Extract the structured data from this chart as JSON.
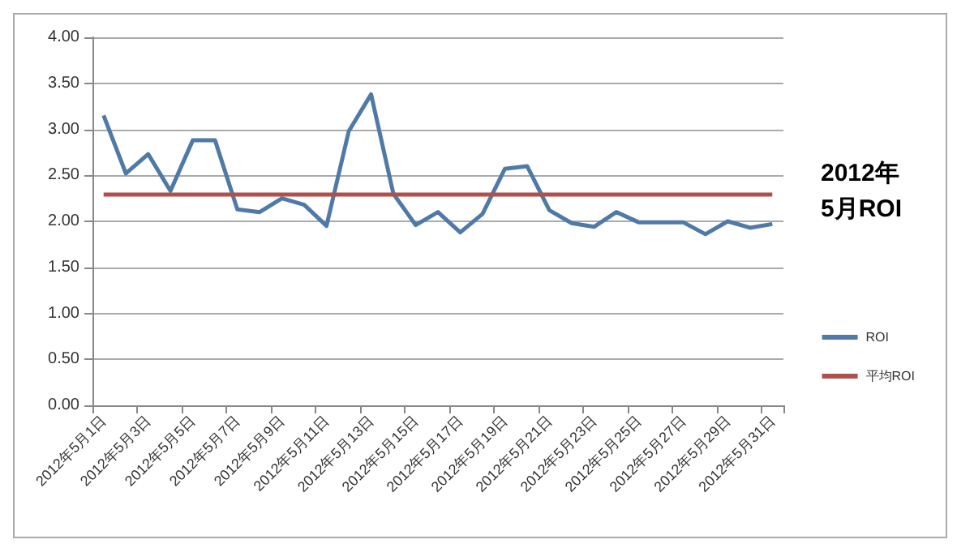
{
  "chart_data": {
    "type": "line",
    "title": "2012年\n5月ROI",
    "categories": [
      "2012年5月1日",
      null,
      "2012年5月3日",
      null,
      "2012年5月5日",
      null,
      "2012年5月7日",
      null,
      "2012年5月9日",
      null,
      "2012年5月11日",
      null,
      "2012年5月13日",
      null,
      "2012年5月15日",
      null,
      "2012年5月17日",
      null,
      "2012年5月19日",
      null,
      "2012年5月21日",
      null,
      "2012年5月23日",
      null,
      "2012年5月25日",
      null,
      "2012年5月27日",
      null,
      "2012年5月29日",
      null,
      "2012年5月31日"
    ],
    "series": [
      {
        "name": "ROI",
        "color": "#4f7aa8",
        "values": [
          3.15,
          2.52,
          2.73,
          2.33,
          2.88,
          2.88,
          2.13,
          2.1,
          2.25,
          2.18,
          1.95,
          2.98,
          3.38,
          2.3,
          1.96,
          2.1,
          1.88,
          2.08,
          2.57,
          2.6,
          2.12,
          1.98,
          1.94,
          2.1,
          1.99,
          1.99,
          1.99,
          1.86,
          2.0,
          1.93,
          1.97
        ]
      },
      {
        "name": "平均ROI",
        "color": "#b0504d",
        "values": [
          2.29,
          2.29,
          2.29,
          2.29,
          2.29,
          2.29,
          2.29,
          2.29,
          2.29,
          2.29,
          2.29,
          2.29,
          2.29,
          2.29,
          2.29,
          2.29,
          2.29,
          2.29,
          2.29,
          2.29,
          2.29,
          2.29,
          2.29,
          2.29,
          2.29,
          2.29,
          2.29,
          2.29,
          2.29,
          2.29,
          2.29
        ]
      }
    ],
    "ylim": [
      0,
      4
    ],
    "yticks": [
      {
        "value": 0,
        "label": "0.00"
      },
      {
        "value": 0.5,
        "label": "0.50"
      },
      {
        "value": 1,
        "label": "1.00"
      },
      {
        "value": 1.5,
        "label": "1.50"
      },
      {
        "value": 2,
        "label": "2.00"
      },
      {
        "value": 2.5,
        "label": "2.50"
      },
      {
        "value": 3,
        "label": "3.00"
      },
      {
        "value": 3.5,
        "label": "3.50"
      },
      {
        "value": 4,
        "label": "4.00"
      }
    ],
    "grid": "y",
    "legend": "right",
    "marker": "none",
    "line_style": "solid"
  }
}
